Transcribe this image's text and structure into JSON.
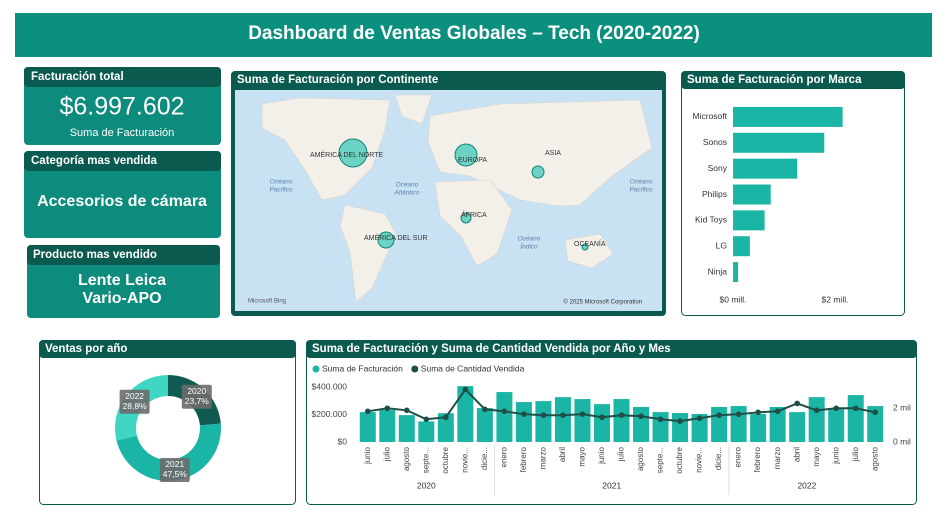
{
  "title": "Dashboard de Ventas Globales – Tech (2020-2022)",
  "cards": [
    {
      "title": "Facturación total",
      "value": "$6.997.602",
      "caption": "Suma de Facturación"
    },
    {
      "title": "Categoría mas vendida",
      "value": "Accesorios de cámara"
    },
    {
      "title": "Producto mas vendido",
      "value_lines": [
        "Lente Leica",
        "Vario-APO"
      ]
    }
  ],
  "map": {
    "title": "Suma de Facturación por Continente",
    "regions": [
      "AMÉRICA DEL NORTE",
      "EUROPA",
      "ASIA",
      "ÁFRICA",
      "AMÉRICA DEL SUR",
      "OCEANÍA"
    ],
    "oceans": [
      [
        "Océano",
        "Pacífico"
      ],
      [
        "Océano",
        "Atlántico"
      ],
      [
        "Océano",
        "Índico"
      ],
      [
        "Océano",
        "Pacífico"
      ]
    ],
    "credits": [
      "Microsoft Bing",
      "© 2025 Microsoft Corporation"
    ]
  },
  "chart_data": [
    {
      "type": "bar",
      "orientation": "horizontal",
      "title": "Suma de Facturación por Marca",
      "categories": [
        "Microsoft",
        "Sonos",
        "Sony",
        "Philips",
        "Kid Toys",
        "LG",
        "Ninja"
      ],
      "values": [
        2150000,
        1790000,
        1260000,
        740000,
        620000,
        330000,
        100000
      ],
      "color": "#1ab5a5",
      "xlim": [
        0,
        2500000
      ],
      "xticks": [
        {
          "value": 0,
          "label": "$0 mill."
        },
        {
          "value": 2000000,
          "label": "$2 mill."
        }
      ]
    },
    {
      "type": "pie",
      "title": "Ventas por año",
      "categories": [
        "2020",
        "2021",
        "2022"
      ],
      "values": [
        23.7,
        47.5,
        28.8
      ],
      "value_labels": [
        "23,7%",
        "47,5%",
        "28,8%"
      ],
      "colors": [
        "#0f5b52",
        "#1ab5a5",
        "#3fd6c4"
      ]
    },
    {
      "type": "combo",
      "title": "Suma de Facturación y Suma de Cantidad Vendida por Año y Mes",
      "category_groups": [
        {
          "name": "2020",
          "categories": [
            "junio",
            "julio",
            "agosto",
            "septe...",
            "octubre",
            "novie...",
            "dicie..."
          ]
        },
        {
          "name": "2021",
          "categories": [
            "enero",
            "febrero",
            "marzo",
            "abril",
            "mayo",
            "junio",
            "julio",
            "agosto",
            "septe...",
            "octubre",
            "novie...",
            "dicie..."
          ]
        },
        {
          "name": "2022",
          "categories": [
            "enero",
            "febrero",
            "marzo",
            "abril",
            "mayo",
            "junio",
            "julio",
            "agosto"
          ]
        }
      ],
      "series": [
        {
          "name": "Suma de Facturación",
          "kind": "bar",
          "color": "#1ab5a5",
          "values": [
            218000,
            233000,
            196000,
            150000,
            210000,
            407000,
            247000,
            364000,
            291000,
            298000,
            327000,
            313000,
            276000,
            313000,
            255000,
            218000,
            211000,
            204000,
            255000,
            262000,
            204000,
            255000,
            218000,
            327000,
            240000,
            342000,
            262000
          ]
        },
        {
          "name": "Suma de Cantidad Vendida",
          "kind": "line",
          "axis": "y2",
          "color": "#1f4e46",
          "values": [
            1820,
            2000,
            1880,
            1350,
            1470,
            3120,
            1940,
            1820,
            1650,
            1590,
            1590,
            1650,
            1470,
            1590,
            1530,
            1350,
            1240,
            1410,
            1590,
            1650,
            1760,
            1820,
            2290,
            1880,
            2000,
            2000,
            1760
          ]
        }
      ],
      "ylim": [
        0,
        430000
      ],
      "yticks": [
        {
          "value": 0,
          "label": "$0"
        },
        {
          "value": 200000,
          "label": "$200.000"
        },
        {
          "value": 400000,
          "label": "$400.000"
        }
      ],
      "y2lim": [
        0,
        3500
      ],
      "y2ticks": [
        {
          "value": 0,
          "label": "0 mil"
        },
        {
          "value": 2000,
          "label": "2 mil"
        }
      ]
    }
  ]
}
